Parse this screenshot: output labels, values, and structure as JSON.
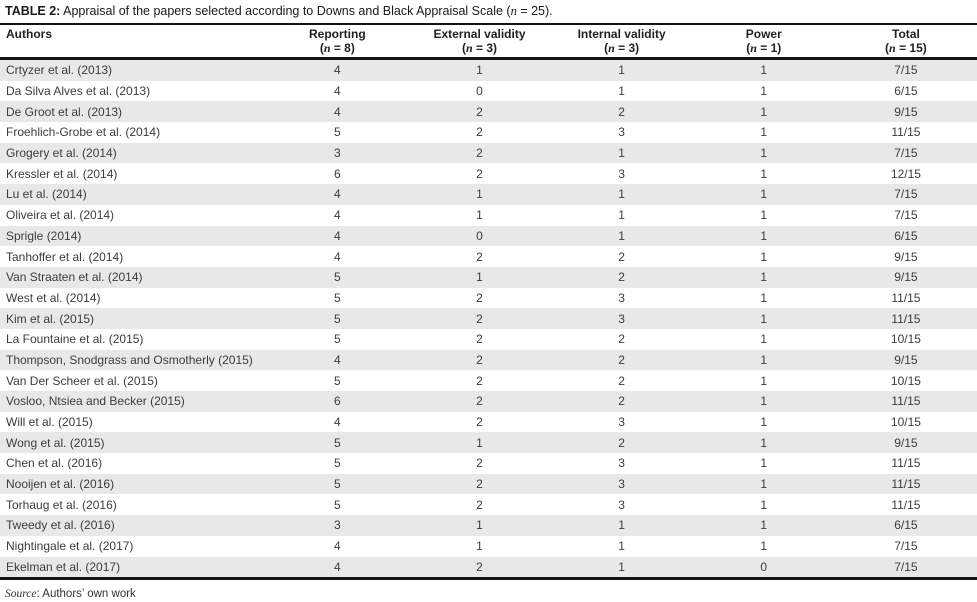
{
  "title": {
    "label": "TABLE 2:",
    "text": " Appraisal of the papers selected according to Downs and Black Appraisal Scale (",
    "n": "n",
    "rest": " = 25)."
  },
  "table": {
    "type": "table",
    "columns": [
      {
        "label": "Authors"
      },
      {
        "label": "Reporting",
        "sub_open": "(",
        "sub_n": "n",
        "sub_rest": " = 8)"
      },
      {
        "label": "External validity",
        "sub_open": "(",
        "sub_n": "n",
        "sub_rest": " = 3)"
      },
      {
        "label": "Internal validity",
        "sub_open": "(",
        "sub_n": "n",
        "sub_rest": " = 3)"
      },
      {
        "label": "Power",
        "sub_open": "(",
        "sub_n": "n",
        "sub_rest": " = 1)"
      },
      {
        "label": "Total",
        "sub_open": "(",
        "sub_n": "n",
        "sub_rest": " = 15)"
      }
    ],
    "rows": [
      {
        "author": "Crtyzer et al. (2013)",
        "reporting": 4,
        "external_validity": 1,
        "internal_validity": 1,
        "power": 1,
        "total": "7/15"
      },
      {
        "author": "Da Silva Alves et al. (2013)",
        "reporting": 4,
        "external_validity": 0,
        "internal_validity": 1,
        "power": 1,
        "total": "6/15"
      },
      {
        "author": "De Groot et al. (2013)",
        "reporting": 4,
        "external_validity": 2,
        "internal_validity": 2,
        "power": 1,
        "total": "9/15"
      },
      {
        "author": "Froehlich-Grobe et al. (2014)",
        "reporting": 5,
        "external_validity": 2,
        "internal_validity": 3,
        "power": 1,
        "total": "11/15"
      },
      {
        "author": "Grogery et al. (2014)",
        "reporting": 3,
        "external_validity": 2,
        "internal_validity": 1,
        "power": 1,
        "total": "7/15"
      },
      {
        "author": "Kressler et al. (2014)",
        "reporting": 6,
        "external_validity": 2,
        "internal_validity": 3,
        "power": 1,
        "total": "12/15"
      },
      {
        "author": "Lu et al. (2014)",
        "reporting": 4,
        "external_validity": 1,
        "internal_validity": 1,
        "power": 1,
        "total": "7/15"
      },
      {
        "author": "Oliveira et al. (2014)",
        "reporting": 4,
        "external_validity": 1,
        "internal_validity": 1,
        "power": 1,
        "total": "7/15"
      },
      {
        "author": "Sprigle (2014)",
        "reporting": 4,
        "external_validity": 0,
        "internal_validity": 1,
        "power": 1,
        "total": "6/15"
      },
      {
        "author": "Tanhoffer et al. (2014)",
        "reporting": 4,
        "external_validity": 2,
        "internal_validity": 2,
        "power": 1,
        "total": "9/15"
      },
      {
        "author": "Van Straaten et al. (2014)",
        "reporting": 5,
        "external_validity": 1,
        "internal_validity": 2,
        "power": 1,
        "total": "9/15"
      },
      {
        "author": "West et al. (2014)",
        "reporting": 5,
        "external_validity": 2,
        "internal_validity": 3,
        "power": 1,
        "total": "11/15"
      },
      {
        "author": "Kim et al. (2015)",
        "reporting": 5,
        "external_validity": 2,
        "internal_validity": 3,
        "power": 1,
        "total": "11/15"
      },
      {
        "author": "La Fountaine et al. (2015)",
        "reporting": 5,
        "external_validity": 2,
        "internal_validity": 2,
        "power": 1,
        "total": "10/15"
      },
      {
        "author": "Thompson, Snodgrass and Osmotherly (2015)",
        "reporting": 4,
        "external_validity": 2,
        "internal_validity": 2,
        "power": 1,
        "total": "9/15"
      },
      {
        "author": "Van Der Scheer et al. (2015)",
        "reporting": 5,
        "external_validity": 2,
        "internal_validity": 2,
        "power": 1,
        "total": "10/15"
      },
      {
        "author": "Vosloo, Ntsiea and Becker (2015)",
        "reporting": 6,
        "external_validity": 2,
        "internal_validity": 2,
        "power": 1,
        "total": "11/15"
      },
      {
        "author": "Will et al. (2015)",
        "reporting": 4,
        "external_validity": 2,
        "internal_validity": 3,
        "power": 1,
        "total": "10/15"
      },
      {
        "author": "Wong et al. (2015)",
        "reporting": 5,
        "external_validity": 1,
        "internal_validity": 2,
        "power": 1,
        "total": "9/15"
      },
      {
        "author": "Chen et al. (2016)",
        "reporting": 5,
        "external_validity": 2,
        "internal_validity": 3,
        "power": 1,
        "total": "11/15"
      },
      {
        "author": "Nooijen et al. (2016)",
        "reporting": 5,
        "external_validity": 2,
        "internal_validity": 3,
        "power": 1,
        "total": "11/15"
      },
      {
        "author": "Torhaug et al. (2016)",
        "reporting": 5,
        "external_validity": 2,
        "internal_validity": 3,
        "power": 1,
        "total": "11/15"
      },
      {
        "author": "Tweedy et al. (2016)",
        "reporting": 3,
        "external_validity": 1,
        "internal_validity": 1,
        "power": 1,
        "total": "6/15"
      },
      {
        "author": "Nightingale et al. (2017)",
        "reporting": 4,
        "external_validity": 1,
        "internal_validity": 1,
        "power": 1,
        "total": "7/15"
      },
      {
        "author": "Ekelman et al. (2017)",
        "reporting": 4,
        "external_validity": 2,
        "internal_validity": 1,
        "power": 0,
        "total": "7/15"
      }
    ]
  },
  "source": {
    "label": "Source",
    "text": ": Authors’ own work"
  },
  "colors": {
    "stripe_gray": "#e8e8e8",
    "rule_black": "#141414",
    "body_text": "#3c3c3c",
    "header_text": "#222222"
  }
}
